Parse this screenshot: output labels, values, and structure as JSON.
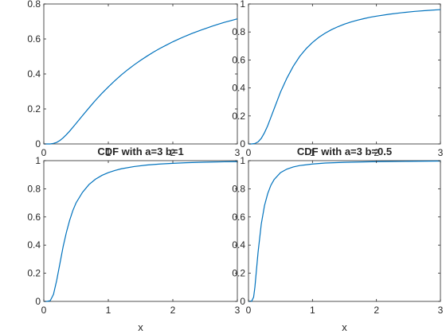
{
  "chart_data": [
    {
      "type": "line",
      "title": "",
      "xlabel": "",
      "ylabel": "",
      "xlim": [
        0,
        3
      ],
      "ylim": [
        0,
        0.8
      ],
      "xticks": [
        "0",
        "1",
        "2",
        "3"
      ],
      "yticks": [
        "0",
        "0.2",
        "0.4",
        "0.6",
        "0.8"
      ],
      "series": [
        {
          "color": "#0072BD",
          "x": [
            0,
            0.05,
            0.1,
            0.15,
            0.2,
            0.25,
            0.3,
            0.35,
            0.4,
            0.45,
            0.5,
            0.6,
            0.7,
            0.8,
            0.9,
            1.0,
            1.1,
            1.2,
            1.3,
            1.4,
            1.5,
            1.6,
            1.7,
            1.8,
            1.9,
            2.0,
            2.1,
            2.2,
            2.3,
            2.4,
            2.5,
            2.6,
            2.7,
            2.8,
            2.9,
            3.0
          ],
          "y": [
            0,
            0,
            0,
            0.003,
            0.009,
            0.02,
            0.035,
            0.053,
            0.073,
            0.095,
            0.117,
            0.162,
            0.206,
            0.249,
            0.289,
            0.326,
            0.361,
            0.394,
            0.424,
            0.452,
            0.478,
            0.502,
            0.525,
            0.546,
            0.565,
            0.584,
            0.601,
            0.617,
            0.632,
            0.646,
            0.659,
            0.672,
            0.684,
            0.695,
            0.705,
            0.715
          ]
        }
      ]
    },
    {
      "type": "line",
      "title": "",
      "xlabel": "",
      "ylabel": "",
      "xlim": [
        0,
        3
      ],
      "ylim": [
        0,
        1
      ],
      "xticks": [
        "0",
        "1",
        "2",
        "3"
      ],
      "yticks": [
        "0",
        "0.2",
        "0.4",
        "0.6",
        "0.8",
        "1"
      ],
      "series": [
        {
          "color": "#0072BD",
          "x": [
            0,
            0.05,
            0.1,
            0.15,
            0.2,
            0.25,
            0.3,
            0.35,
            0.4,
            0.45,
            0.5,
            0.6,
            0.7,
            0.8,
            0.9,
            1.0,
            1.1,
            1.2,
            1.3,
            1.4,
            1.5,
            1.6,
            1.7,
            1.8,
            1.9,
            2.0,
            2.2,
            2.4,
            2.6,
            2.8,
            3.0
          ],
          "y": [
            0,
            0,
            0.003,
            0.015,
            0.04,
            0.08,
            0.13,
            0.19,
            0.25,
            0.31,
            0.37,
            0.47,
            0.555,
            0.625,
            0.68,
            0.725,
            0.762,
            0.792,
            0.817,
            0.838,
            0.856,
            0.871,
            0.884,
            0.895,
            0.905,
            0.913,
            0.927,
            0.938,
            0.947,
            0.954,
            0.96
          ]
        }
      ]
    },
    {
      "type": "line",
      "title": "CDF with a=3 b=1",
      "xlabel": "x",
      "ylabel": "",
      "xlim": [
        0,
        3
      ],
      "ylim": [
        0,
        1
      ],
      "xticks": [
        "0",
        "1",
        "2",
        "3"
      ],
      "yticks": [
        "0",
        "0.2",
        "0.4",
        "0.6",
        "0.8",
        "1"
      ],
      "series": [
        {
          "color": "#0072BD",
          "x": [
            0,
            0.05,
            0.1,
            0.15,
            0.2,
            0.25,
            0.3,
            0.35,
            0.4,
            0.45,
            0.5,
            0.6,
            0.7,
            0.8,
            0.9,
            1.0,
            1.1,
            1.2,
            1.4,
            1.6,
            1.8,
            2.0,
            2.2,
            2.4,
            2.6,
            2.8,
            3.0
          ],
          "y": [
            0,
            0,
            0.005,
            0.05,
            0.15,
            0.27,
            0.39,
            0.49,
            0.575,
            0.645,
            0.7,
            0.775,
            0.83,
            0.868,
            0.895,
            0.915,
            0.93,
            0.942,
            0.958,
            0.969,
            0.976,
            0.981,
            0.985,
            0.988,
            0.99,
            0.992,
            0.993
          ]
        }
      ]
    },
    {
      "type": "line",
      "title": "CDF with a=3 b=0.5",
      "xlabel": "x",
      "ylabel": "",
      "xlim": [
        0,
        3
      ],
      "ylim": [
        0,
        1
      ],
      "xticks": [
        "0",
        "1",
        "2",
        "3"
      ],
      "yticks": [
        "0",
        "0.2",
        "0.4",
        "0.6",
        "0.8",
        "1"
      ],
      "series": [
        {
          "color": "#0072BD",
          "x": [
            0,
            0.05,
            0.08,
            0.1,
            0.12,
            0.15,
            0.2,
            0.25,
            0.3,
            0.35,
            0.4,
            0.5,
            0.6,
            0.7,
            0.8,
            1.0,
            1.2,
            1.5,
            2.0,
            2.5,
            3.0
          ],
          "y": [
            0,
            0.002,
            0.03,
            0.1,
            0.2,
            0.35,
            0.55,
            0.68,
            0.765,
            0.825,
            0.865,
            0.915,
            0.94,
            0.955,
            0.965,
            0.976,
            0.983,
            0.988,
            0.993,
            0.995,
            0.997
          ]
        }
      ]
    }
  ]
}
